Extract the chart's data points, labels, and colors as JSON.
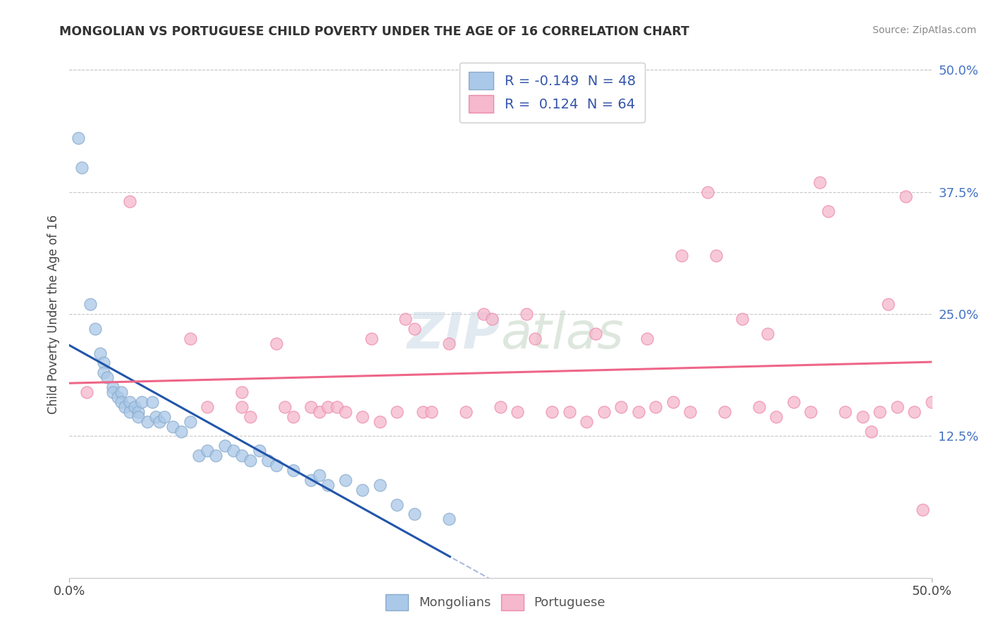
{
  "title": "MONGOLIAN VS PORTUGUESE CHILD POVERTY UNDER THE AGE OF 16 CORRELATION CHART",
  "source": "Source: ZipAtlas.com",
  "ylabel": "Child Poverty Under the Age of 16",
  "xlim": [
    0.0,
    50.0
  ],
  "ylim": [
    -2.0,
    52.0
  ],
  "yticks": [
    12.5,
    25.0,
    37.5,
    50.0
  ],
  "yticklabels": [
    "12.5%",
    "25.0%",
    "37.5%",
    "50.0%"
  ],
  "background_color": "#ffffff",
  "grid_color": "#c8c8c8",
  "mongolian_color": "#aac8e8",
  "portuguese_color": "#f5b8cc",
  "mongolian_edge": "#88aacc",
  "portuguese_edge": "#ee8aaa",
  "line_mongolian": "#2255aa",
  "line_mongolian_dash": "#aabbdd",
  "line_portuguese": "#ee6688",
  "legend_R_mongolian": "-0.149",
  "legend_N_mongolian": "48",
  "legend_R_portuguese": "0.124",
  "legend_N_portuguese": "64",
  "mongolian_x": [
    0.5,
    0.7,
    1.2,
    1.5,
    1.8,
    2.0,
    2.0,
    2.2,
    2.5,
    2.5,
    2.8,
    3.0,
    3.0,
    3.2,
    3.5,
    3.5,
    3.8,
    4.0,
    4.0,
    4.2,
    4.5,
    4.8,
    5.0,
    5.2,
    5.5,
    6.0,
    6.5,
    7.0,
    7.5,
    8.0,
    8.5,
    9.0,
    9.5,
    10.0,
    10.5,
    11.0,
    11.5,
    12.0,
    13.0,
    14.0,
    14.5,
    15.0,
    16.0,
    17.0,
    18.0,
    19.0,
    20.0,
    22.0
  ],
  "mongolian_y": [
    43.0,
    40.0,
    26.0,
    23.5,
    21.0,
    20.0,
    19.0,
    18.5,
    17.5,
    17.0,
    16.5,
    17.0,
    16.0,
    15.5,
    16.0,
    15.0,
    15.5,
    15.0,
    14.5,
    16.0,
    14.0,
    16.0,
    14.5,
    14.0,
    14.5,
    13.5,
    13.0,
    14.0,
    10.5,
    11.0,
    10.5,
    11.5,
    11.0,
    10.5,
    10.0,
    11.0,
    10.0,
    9.5,
    9.0,
    8.0,
    8.5,
    7.5,
    8.0,
    7.0,
    7.5,
    5.5,
    4.5,
    4.0
  ],
  "portuguese_x": [
    1.0,
    3.5,
    7.0,
    8.0,
    10.0,
    10.5,
    12.0,
    12.5,
    13.0,
    14.0,
    14.5,
    15.0,
    15.5,
    16.0,
    17.0,
    17.5,
    18.0,
    19.0,
    19.5,
    20.0,
    20.5,
    21.0,
    22.0,
    23.0,
    24.0,
    24.5,
    25.0,
    26.0,
    27.0,
    28.0,
    29.0,
    30.0,
    30.5,
    31.0,
    32.0,
    33.0,
    33.5,
    34.0,
    35.0,
    36.0,
    37.0,
    38.0,
    39.0,
    40.0,
    40.5,
    41.0,
    42.0,
    43.0,
    44.0,
    45.0,
    46.0,
    47.0,
    47.5,
    48.0,
    48.5,
    49.0,
    49.5,
    50.0,
    37.5,
    26.5,
    43.5,
    10.0,
    35.5,
    46.5
  ],
  "portuguese_y": [
    17.0,
    36.5,
    22.5,
    15.5,
    15.5,
    14.5,
    22.0,
    15.5,
    14.5,
    15.5,
    15.0,
    15.5,
    15.5,
    15.0,
    14.5,
    22.5,
    14.0,
    15.0,
    24.5,
    23.5,
    15.0,
    15.0,
    22.0,
    15.0,
    25.0,
    24.5,
    15.5,
    15.0,
    22.5,
    15.0,
    15.0,
    14.0,
    23.0,
    15.0,
    15.5,
    15.0,
    22.5,
    15.5,
    16.0,
    15.0,
    37.5,
    15.0,
    24.5,
    15.5,
    23.0,
    14.5,
    16.0,
    15.0,
    35.5,
    15.0,
    14.5,
    15.0,
    26.0,
    15.5,
    37.0,
    15.0,
    5.0,
    16.0,
    31.0,
    25.0,
    38.5,
    17.0,
    31.0,
    13.0
  ]
}
